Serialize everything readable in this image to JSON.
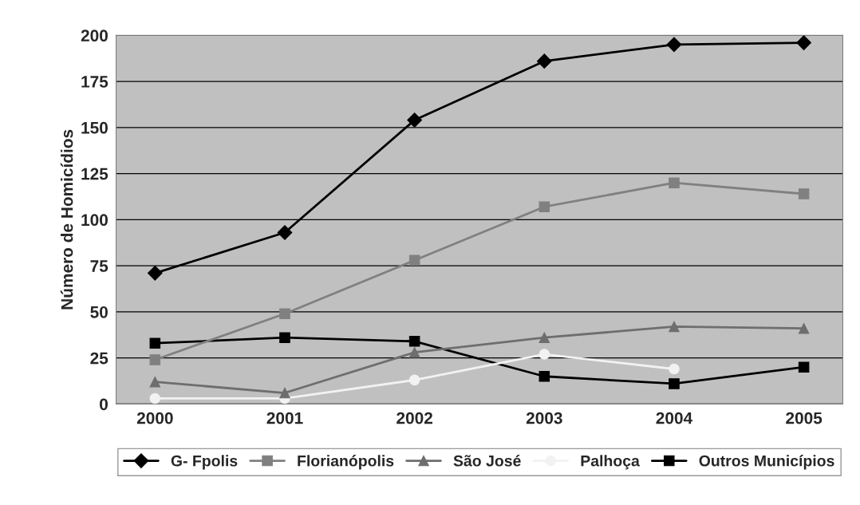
{
  "chart_data": {
    "type": "line",
    "ylabel": "Número de Homicídios",
    "categories": [
      "2000",
      "2001",
      "2002",
      "2003",
      "2004",
      "2005"
    ],
    "series": [
      {
        "name": "G- Fpolis",
        "color": "#000000",
        "marker": "diamond",
        "values": [
          71,
          93,
          154,
          186,
          195,
          196
        ]
      },
      {
        "name": "Florianópolis",
        "color": "#808080",
        "marker": "square",
        "values": [
          24,
          49,
          78,
          107,
          120,
          114
        ]
      },
      {
        "name": "São José",
        "color": "#6e6e6e",
        "marker": "triangle",
        "values": [
          12,
          6,
          28,
          36,
          42,
          41
        ]
      },
      {
        "name": "Palhoça",
        "color": "#f2f2f2",
        "marker": "circle",
        "values": [
          3,
          3,
          13,
          27,
          19,
          null
        ]
      },
      {
        "name": "Outros Municípios",
        "color": "#000000",
        "marker": "square",
        "values": [
          33,
          36,
          34,
          15,
          11,
          20
        ]
      }
    ],
    "ylim": [
      0,
      200
    ],
    "yticks": [
      0,
      25,
      50,
      75,
      100,
      125,
      150,
      175,
      200
    ],
    "grid": "y",
    "legend": "bottom"
  }
}
